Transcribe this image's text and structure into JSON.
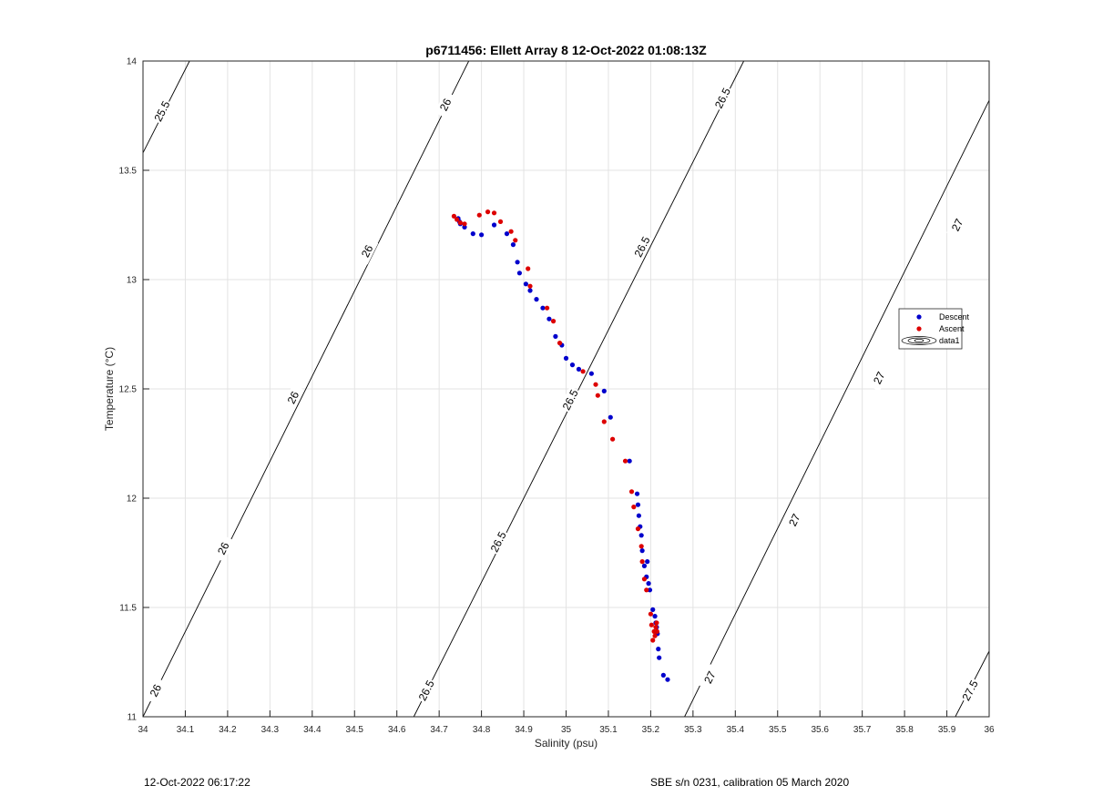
{
  "footer": {
    "left": "12-Oct-2022 06:17:22",
    "right": "SBE s/n 0231, calibration 05 March 2020"
  },
  "colors": {
    "descent": "#0000cc",
    "ascent": "#dd0000",
    "grid": "#e3e3e3",
    "contour": "#000000"
  },
  "chart_data": {
    "type": "scatter",
    "title": "p6711456: Ellett Array 8 12-Oct-2022 01:08:13Z",
    "xlabel": "Salinity (psu)",
    "ylabel": "Temperature (°C)",
    "xlim": [
      34,
      36
    ],
    "ylim": [
      11,
      14
    ],
    "x_ticks": [
      "34",
      "34.1",
      "34.2",
      "34.3",
      "34.4",
      "34.5",
      "34.6",
      "34.7",
      "34.8",
      "34.9",
      "35",
      "35.1",
      "35.2",
      "35.3",
      "35.4",
      "35.5",
      "35.6",
      "35.7",
      "35.8",
      "35.9",
      "36"
    ],
    "y_ticks": [
      "11",
      "11.5",
      "12",
      "12.5",
      "13",
      "13.5",
      "14"
    ],
    "grid": true,
    "legend_position": "right",
    "legend": [
      "Descent",
      "Ascent",
      "data1"
    ],
    "series": [
      {
        "name": "Descent",
        "x": [
          34.745,
          34.748,
          34.75,
          34.76,
          34.78,
          34.8,
          34.83,
          34.86,
          34.875,
          34.885,
          34.89,
          34.905,
          34.915,
          34.93,
          34.945,
          34.96,
          34.975,
          34.99,
          35.0,
          35.015,
          35.03,
          35.06,
          35.09,
          35.105,
          35.15,
          35.168,
          35.17,
          35.172,
          35.175,
          35.178,
          35.18,
          35.185,
          35.19,
          35.192,
          35.195,
          35.198,
          35.205,
          35.21,
          35.212,
          35.214,
          35.216,
          35.218,
          35.22,
          35.23,
          35.24
        ],
        "y": [
          13.28,
          13.265,
          13.255,
          13.24,
          13.21,
          13.205,
          13.25,
          13.21,
          13.16,
          13.08,
          13.03,
          12.98,
          12.95,
          12.91,
          12.87,
          12.82,
          12.74,
          12.7,
          12.64,
          12.61,
          12.59,
          12.57,
          12.49,
          12.37,
          12.17,
          12.02,
          11.97,
          11.92,
          11.87,
          11.83,
          11.76,
          11.69,
          11.64,
          11.71,
          11.61,
          11.58,
          11.49,
          11.46,
          11.43,
          11.41,
          11.38,
          11.31,
          11.27,
          11.19,
          11.17
        ]
      },
      {
        "name": "Ascent",
        "x": [
          34.735,
          34.742,
          34.75,
          34.76,
          34.795,
          34.815,
          34.83,
          34.845,
          34.87,
          34.88,
          34.91,
          34.915,
          34.955,
          34.97,
          34.985,
          35.04,
          35.07,
          35.075,
          35.09,
          35.11,
          35.14,
          35.155,
          35.16,
          35.17,
          35.178,
          35.18,
          35.185,
          35.19,
          35.2,
          35.202,
          35.205,
          35.208,
          35.21,
          35.212,
          35.214,
          35.215
        ],
        "y": [
          13.29,
          13.275,
          13.26,
          13.255,
          13.295,
          13.31,
          13.305,
          13.265,
          13.22,
          13.18,
          13.05,
          12.97,
          12.87,
          12.81,
          12.71,
          12.58,
          12.52,
          12.47,
          12.35,
          12.27,
          12.17,
          12.03,
          11.96,
          11.86,
          11.78,
          11.71,
          11.63,
          11.58,
          11.47,
          11.42,
          11.35,
          11.39,
          11.37,
          11.41,
          11.43,
          11.39
        ]
      }
    ],
    "contours": [
      {
        "level": "25.5",
        "x": [
          34.0,
          34.11
        ],
        "y": [
          13.58,
          14.0
        ],
        "labels": [
          {
            "x": 34.045,
            "y": 13.77,
            "text": "25.5"
          }
        ]
      },
      {
        "level": "26",
        "x": [
          34.0,
          34.77
        ],
        "y": [
          11.0,
          14.0
        ],
        "labels": [
          {
            "x": 34.03,
            "y": 11.12,
            "text": "26"
          },
          {
            "x": 34.19,
            "y": 11.77,
            "text": "26"
          },
          {
            "x": 34.355,
            "y": 12.46,
            "text": "26"
          },
          {
            "x": 34.53,
            "y": 13.13,
            "text": "26"
          },
          {
            "x": 34.715,
            "y": 13.8,
            "text": "26"
          }
        ]
      },
      {
        "level": "26.5",
        "x": [
          34.64,
          35.42
        ],
        "y": [
          11.0,
          14.0
        ],
        "labels": [
          {
            "x": 34.67,
            "y": 11.12,
            "text": "26.5"
          },
          {
            "x": 34.84,
            "y": 11.8,
            "text": "26.5"
          },
          {
            "x": 35.01,
            "y": 12.45,
            "text": "26.5"
          },
          {
            "x": 35.18,
            "y": 13.15,
            "text": "26.5"
          },
          {
            "x": 35.37,
            "y": 13.83,
            "text": "26.5"
          }
        ]
      },
      {
        "level": "27",
        "x": [
          35.28,
          36.0
        ],
        "y": [
          11.0,
          13.82
        ],
        "labels": [
          {
            "x": 35.34,
            "y": 11.18,
            "text": "27"
          },
          {
            "x": 35.54,
            "y": 11.9,
            "text": "27"
          },
          {
            "x": 35.74,
            "y": 12.55,
            "text": "27"
          },
          {
            "x": 35.925,
            "y": 13.25,
            "text": "27"
          }
        ]
      },
      {
        "level": "27.5",
        "x": [
          35.92,
          36.0
        ],
        "y": [
          11.0,
          11.3
        ],
        "labels": [
          {
            "x": 35.955,
            "y": 11.12,
            "text": "27.5"
          }
        ]
      }
    ]
  }
}
